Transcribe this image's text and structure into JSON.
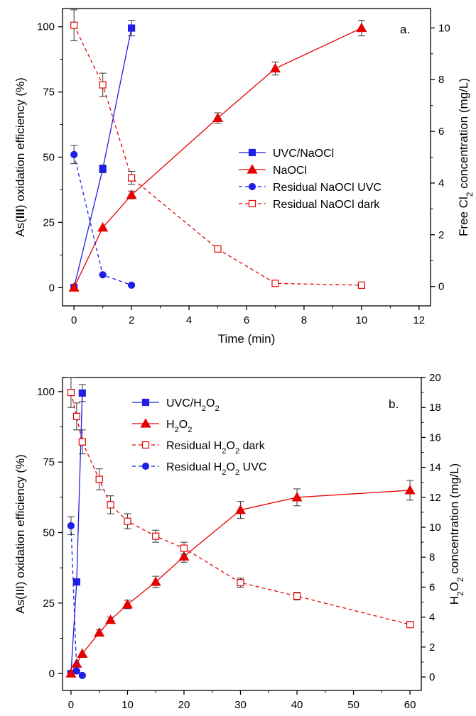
{
  "chart_data": [
    {
      "type": "line",
      "panel_label": "a.",
      "xlabel": "Time (min)",
      "ylabel_left": "As(III) oxidation efficiency (%)",
      "ylabel_left_parts": [
        "As(",
        "III",
        ") oxidation efficiency (%)"
      ],
      "ylabel_right": "Free Cl2 concentration (mg/L)",
      "ylabel_right_parts": [
        "Free Cl",
        "2",
        " concentration (mg/L)"
      ],
      "xlim": [
        -0.4,
        12.4
      ],
      "ylim_left": [
        -7,
        107
      ],
      "ylim_right": [
        -0.75,
        10.75
      ],
      "xticks": [
        0,
        2,
        4,
        6,
        8,
        10,
        12
      ],
      "yticks_left": [
        0,
        25,
        50,
        75,
        100
      ],
      "yticks_right": [
        0,
        2,
        4,
        6,
        8,
        10
      ],
      "legend_position": "middle-right",
      "series": [
        {
          "name": "UVC/NaOCl",
          "legend_parts": [
            "UVC/NaOCl"
          ],
          "axis": "left",
          "color": "#1f1fe8",
          "marker": "square",
          "filled": true,
          "dash": false,
          "x": [
            0,
            1,
            2
          ],
          "y": [
            0,
            45.5,
            99.5
          ],
          "err": [
            0,
            1.5,
            3
          ]
        },
        {
          "name": "NaOCl",
          "legend_parts": [
            "NaOCl"
          ],
          "axis": "left",
          "color": "#e60000",
          "marker": "triangle",
          "filled": true,
          "dash": false,
          "x": [
            0,
            1,
            2,
            5,
            7,
            10
          ],
          "y": [
            0,
            23,
            35.5,
            65,
            84,
            99.5
          ],
          "err": [
            0,
            0,
            1.5,
            2,
            2.5,
            3
          ]
        },
        {
          "name": "Residual NaOCl UVC",
          "legend_parts": [
            "Residual NaOCl UVC"
          ],
          "axis": "right",
          "color": "#1f1fe8",
          "marker": "circle",
          "filled": true,
          "dash": true,
          "x": [
            0,
            1,
            2
          ],
          "y": [
            5.1,
            0.45,
            0.05
          ],
          "err": [
            0.35,
            0,
            0
          ]
        },
        {
          "name": "Residual NaOCl dark",
          "legend_parts": [
            "Residual NaOCl dark"
          ],
          "axis": "right",
          "color": "#e60000",
          "marker": "square",
          "filled": false,
          "dash": true,
          "x": [
            0,
            1,
            2,
            5,
            7,
            10
          ],
          "y": [
            10.1,
            7.8,
            4.2,
            1.45,
            0.12,
            0.05
          ],
          "err": [
            0.6,
            0.45,
            0.25,
            0.08,
            0.08,
            0.05
          ]
        }
      ]
    },
    {
      "type": "line",
      "panel_label": "b.",
      "xlabel": "Time (min)",
      "ylabel_left": "As(III) oxidation efficiency (%)",
      "ylabel_left_parts": [
        "As(III) oxidation efficiency (%)"
      ],
      "ylabel_right": "H2O2 concentration (mg/L)",
      "ylabel_right_parts": [
        "H",
        "2",
        "O",
        "2",
        " concentration (mg/L)"
      ],
      "xlim": [
        -1.5,
        62
      ],
      "ylim_left": [
        -6,
        105
      ],
      "ylim_right": [
        -0.9,
        20
      ],
      "xticks": [
        0,
        10,
        20,
        30,
        40,
        50,
        60
      ],
      "yticks_left": [
        0,
        25,
        50,
        75,
        100
      ],
      "yticks_right": [
        0,
        2,
        4,
        6,
        8,
        10,
        12,
        14,
        16,
        18,
        20
      ],
      "legend_position": "top-left",
      "series": [
        {
          "name": "UVC/H2O2",
          "legend_parts": [
            "UVC/H",
            "2",
            "O",
            "2"
          ],
          "axis": "left",
          "color": "#1f1fe8",
          "marker": "square",
          "filled": true,
          "dash": false,
          "x": [
            0,
            1,
            2
          ],
          "y": [
            0,
            32.5,
            99.5
          ],
          "err": [
            0,
            0,
            3
          ]
        },
        {
          "name": "H2O2",
          "legend_parts": [
            "H",
            "2",
            "O",
            "2"
          ],
          "axis": "left",
          "color": "#e60000",
          "marker": "triangle",
          "filled": true,
          "dash": false,
          "x": [
            0,
            1,
            2,
            5,
            7,
            10,
            15,
            20,
            30,
            40,
            60
          ],
          "y": [
            0,
            3.5,
            7,
            14.5,
            19,
            24.5,
            32.5,
            41.5,
            58,
            62.5,
            65
          ],
          "err": [
            0,
            0,
            0,
            1,
            1,
            1.5,
            2,
            2,
            3,
            3,
            3.5
          ]
        },
        {
          "name": "Residual H2O2 dark",
          "legend_parts": [
            "Residual H",
            "2",
            "O",
            "2",
            " dark"
          ],
          "axis": "right",
          "color": "#e60000",
          "marker": "square",
          "filled": false,
          "dash": true,
          "x": [
            0,
            1,
            2,
            5,
            7,
            10,
            15,
            20,
            30,
            40,
            60
          ],
          "y": [
            19,
            17.4,
            15.7,
            13.2,
            11.5,
            10.4,
            9.4,
            8.6,
            6.3,
            5.4,
            3.5
          ],
          "err": [
            1,
            0.9,
            0.8,
            0.7,
            0.6,
            0.5,
            0.4,
            0.4,
            0.3,
            0.25,
            0.1
          ]
        },
        {
          "name": "Residual H2O2 UVC",
          "legend_parts": [
            "Residual H",
            "2",
            "O",
            "2",
            " UVC"
          ],
          "axis": "right",
          "color": "#1f1fe8",
          "marker": "circle",
          "filled": true,
          "dash": true,
          "x": [
            0,
            1,
            2
          ],
          "y": [
            10.1,
            0.4,
            0.1
          ],
          "err": [
            0.6,
            0,
            0
          ]
        }
      ]
    }
  ]
}
